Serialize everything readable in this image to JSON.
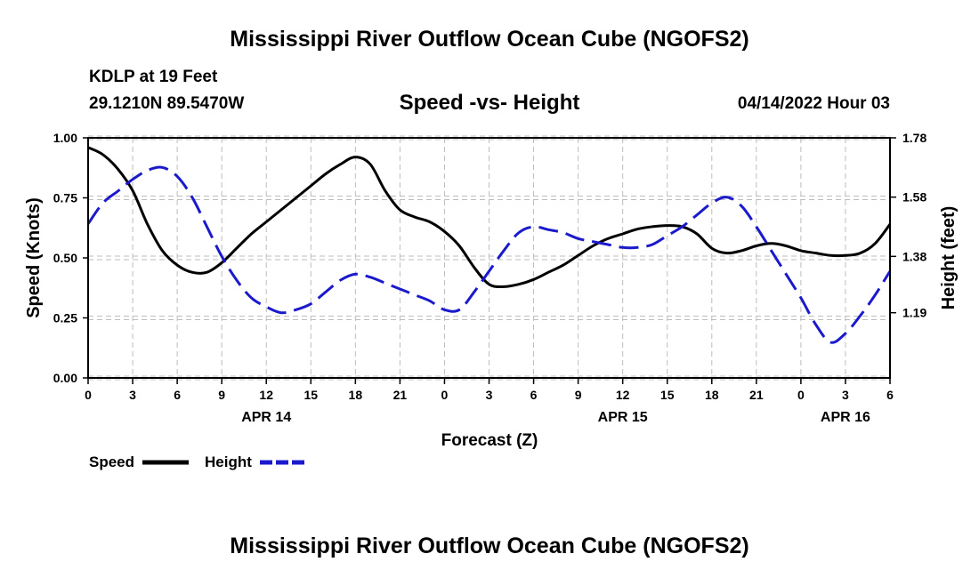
{
  "header": {
    "title": "Mississippi River Outflow Ocean Cube (NGOFS2)",
    "station": "KDLP at 19 Feet",
    "coords": "29.1210N  89.5470W",
    "subtitle": "Speed -vs- Height",
    "datetime": "04/14/2022 Hour 03"
  },
  "footer": {
    "title": "Mississippi River Outflow Ocean Cube (NGOFS2)"
  },
  "chart_data": {
    "type": "line",
    "title": "Speed -vs- Height",
    "xlabel": "Forecast (Z)",
    "ylabel": "Speed (Knots)",
    "y2label": "Height (feet)",
    "x_hours_range": [
      0,
      54
    ],
    "ylim": [
      0,
      1.0
    ],
    "y2lim": [
      0.97,
      1.78
    ],
    "y_ticks": [
      "0.00",
      "0.25",
      "0.50",
      "0.75",
      "1.00"
    ],
    "y_tick_values": [
      0,
      0.25,
      0.5,
      0.75,
      1.0
    ],
    "y2_ticks": [
      "1.19",
      "1.38",
      "1.58",
      "1.78"
    ],
    "y2_tick_values": [
      1.19,
      1.38,
      1.58,
      1.78
    ],
    "x_ticks": [
      "0",
      "3",
      "6",
      "9",
      "12",
      "15",
      "18",
      "21",
      "0",
      "3",
      "6",
      "9",
      "12",
      "15",
      "18",
      "21",
      "0",
      "3",
      "6"
    ],
    "date_labels": [
      {
        "label": "APR 14",
        "hour": 12
      },
      {
        "label": "APR 15",
        "hour": 36
      },
      {
        "label": "APR 16",
        "hour": 51
      }
    ],
    "grid": true,
    "legend": "bottom-left",
    "series": [
      {
        "name": "Speed",
        "axis": "left",
        "color": "#000000",
        "style": "solid",
        "x": [
          0,
          1,
          2,
          3,
          4,
          5,
          6,
          7,
          8,
          9,
          10,
          11,
          12,
          13,
          14,
          15,
          16,
          17,
          18,
          19,
          20,
          21,
          22,
          23,
          24,
          25,
          26,
          27,
          28,
          29,
          30,
          31,
          32,
          33,
          34,
          35,
          36,
          37,
          38,
          39,
          40,
          41,
          42,
          43,
          44,
          45,
          46,
          47,
          48,
          49,
          50,
          51,
          52,
          53,
          54
        ],
        "values": [
          0.96,
          0.93,
          0.87,
          0.78,
          0.64,
          0.53,
          0.47,
          0.44,
          0.44,
          0.48,
          0.54,
          0.6,
          0.65,
          0.7,
          0.75,
          0.8,
          0.85,
          0.89,
          0.92,
          0.89,
          0.78,
          0.7,
          0.67,
          0.65,
          0.61,
          0.55,
          0.46,
          0.39,
          0.38,
          0.39,
          0.41,
          0.44,
          0.47,
          0.51,
          0.55,
          0.58,
          0.6,
          0.62,
          0.63,
          0.635,
          0.63,
          0.6,
          0.54,
          0.52,
          0.53,
          0.55,
          0.56,
          0.55,
          0.53,
          0.52,
          0.51,
          0.51,
          0.52,
          0.56,
          0.64
        ]
      },
      {
        "name": "Height",
        "axis": "right",
        "color": "#1a1acc",
        "style": "dashed",
        "x": [
          0,
          1,
          2,
          3,
          4,
          5,
          6,
          7,
          8,
          9,
          10,
          11,
          12,
          13,
          14,
          15,
          16,
          17,
          18,
          19,
          20,
          21,
          22,
          23,
          24,
          25,
          26,
          27,
          28,
          29,
          30,
          31,
          32,
          33,
          34,
          35,
          36,
          37,
          38,
          39,
          40,
          41,
          42,
          43,
          44,
          45,
          46,
          47,
          48,
          49,
          50,
          51,
          52,
          53,
          54
        ],
        "values": [
          1.49,
          1.56,
          1.6,
          1.64,
          1.67,
          1.68,
          1.65,
          1.58,
          1.48,
          1.38,
          1.3,
          1.24,
          1.21,
          1.19,
          1.2,
          1.22,
          1.26,
          1.3,
          1.32,
          1.31,
          1.29,
          1.27,
          1.25,
          1.23,
          1.2,
          1.2,
          1.26,
          1.33,
          1.4,
          1.46,
          1.48,
          1.47,
          1.46,
          1.44,
          1.43,
          1.42,
          1.41,
          1.41,
          1.42,
          1.45,
          1.48,
          1.52,
          1.56,
          1.58,
          1.55,
          1.48,
          1.4,
          1.32,
          1.24,
          1.15,
          1.09,
          1.12,
          1.18,
          1.25,
          1.33
        ]
      }
    ]
  }
}
